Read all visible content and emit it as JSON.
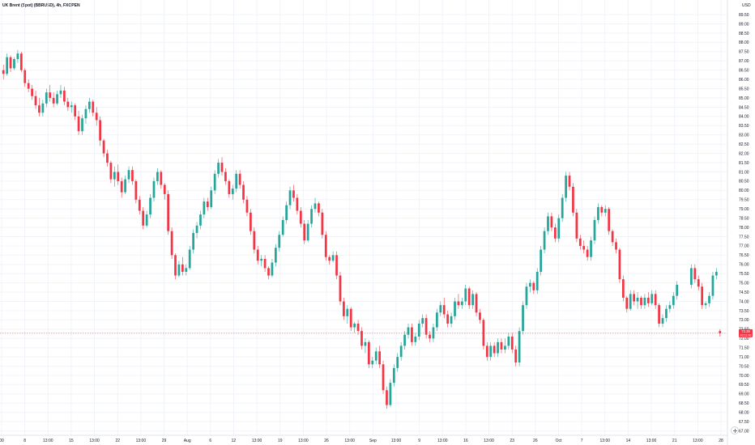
{
  "chart_data": {
    "type": "candlestick",
    "title": "UK Brent (Spot) (BBRUSD), 4h, FXOPEN",
    "currency": "USD",
    "ylim": [
      67.0,
      90.0
    ],
    "y_ticks": [
      "67.00",
      "67.50",
      "68.00",
      "68.50",
      "69.00",
      "69.50",
      "70.00",
      "70.50",
      "71.00",
      "71.50",
      "72.00",
      "72.50",
      "73.00",
      "73.50",
      "74.00",
      "74.50",
      "75.00",
      "75.50",
      "76.00",
      "76.50",
      "77.00",
      "77.50",
      "78.00",
      "78.50",
      "79.00",
      "79.50",
      "80.00",
      "80.50",
      "81.00",
      "81.50",
      "82.00",
      "82.50",
      "83.00",
      "83.50",
      "84.00",
      "84.50",
      "85.00",
      "85.50",
      "86.00",
      "86.50",
      "87.00",
      "87.50",
      "88.00",
      "88.50",
      "89.00",
      "89.50"
    ],
    "x_ticks": [
      "00",
      "8",
      "13:00",
      "15",
      "13:00",
      "22",
      "13:00",
      "29",
      "Aug",
      "6",
      "12",
      "13:00",
      "19",
      "13:00",
      "26",
      "13:00",
      "Sep",
      "13:00",
      "9",
      "13:00",
      "16",
      "13:00",
      "23",
      "26",
      "Oct",
      "7",
      "13:00",
      "14",
      "13:00",
      "21",
      "13:00",
      "28"
    ],
    "current_price": 72.28,
    "current_price_label": "72.28",
    "timer_label": "03:11:00",
    "candles": [
      [
        86.5,
        86.8,
        86.0,
        86.3
      ],
      [
        86.3,
        87.4,
        86.2,
        87.2
      ],
      [
        87.2,
        87.3,
        86.4,
        86.6
      ],
      [
        86.6,
        87.2,
        86.5,
        87.1
      ],
      [
        87.1,
        87.6,
        86.9,
        87.4
      ],
      [
        87.4,
        87.5,
        86.4,
        86.5
      ],
      [
        86.5,
        86.6,
        85.6,
        85.8
      ],
      [
        85.8,
        86.0,
        85.3,
        85.5
      ],
      [
        85.5,
        85.7,
        84.9,
        85.1
      ],
      [
        85.1,
        85.4,
        84.4,
        84.6
      ],
      [
        84.6,
        85.0,
        84.0,
        84.2
      ],
      [
        84.2,
        84.9,
        84.0,
        84.7
      ],
      [
        84.7,
        85.5,
        84.5,
        85.3
      ],
      [
        85.3,
        85.7,
        84.8,
        85.0
      ],
      [
        85.0,
        85.3,
        84.5,
        84.7
      ],
      [
        84.7,
        85.4,
        84.6,
        85.2
      ],
      [
        85.2,
        85.7,
        85.0,
        85.4
      ],
      [
        85.4,
        85.6,
        84.6,
        84.8
      ],
      [
        84.8,
        85.0,
        84.3,
        84.5
      ],
      [
        84.5,
        84.8,
        84.2,
        84.6
      ],
      [
        84.6,
        84.7,
        83.8,
        84.0
      ],
      [
        84.0,
        84.3,
        83.0,
        83.2
      ],
      [
        83.2,
        84.1,
        83.0,
        83.9
      ],
      [
        83.9,
        84.6,
        83.6,
        84.4
      ],
      [
        84.4,
        85.0,
        84.2,
        84.8
      ],
      [
        84.8,
        84.9,
        84.0,
        84.2
      ],
      [
        84.2,
        84.5,
        83.5,
        83.8
      ],
      [
        83.8,
        84.0,
        82.4,
        82.7
      ],
      [
        82.7,
        82.8,
        81.8,
        82.0
      ],
      [
        82.0,
        82.2,
        81.3,
        81.5
      ],
      [
        81.5,
        81.6,
        80.4,
        80.6
      ],
      [
        80.6,
        81.3,
        80.2,
        81.0
      ],
      [
        81.0,
        81.4,
        80.3,
        80.5
      ],
      [
        80.5,
        80.7,
        79.6,
        79.9
      ],
      [
        79.9,
        80.8,
        79.8,
        80.6
      ],
      [
        80.6,
        81.3,
        80.4,
        81.1
      ],
      [
        81.1,
        81.3,
        80.3,
        80.5
      ],
      [
        80.5,
        80.6,
        79.3,
        79.5
      ],
      [
        79.5,
        79.7,
        78.7,
        78.9
      ],
      [
        78.9,
        79.1,
        77.9,
        78.1
      ],
      [
        78.1,
        78.9,
        78.0,
        78.7
      ],
      [
        78.7,
        79.8,
        78.5,
        79.6
      ],
      [
        79.6,
        80.7,
        79.4,
        80.5
      ],
      [
        80.5,
        81.2,
        80.3,
        81.0
      ],
      [
        81.0,
        81.1,
        80.1,
        80.3
      ],
      [
        80.3,
        80.4,
        79.5,
        79.8
      ],
      [
        79.8,
        80.0,
        77.6,
        77.8
      ],
      [
        77.8,
        78.0,
        76.3,
        76.5
      ],
      [
        76.5,
        76.6,
        75.2,
        75.4
      ],
      [
        75.4,
        76.2,
        75.3,
        76.0
      ],
      [
        76.0,
        76.4,
        75.4,
        75.6
      ],
      [
        75.6,
        76.0,
        75.4,
        75.8
      ],
      [
        75.8,
        77.0,
        75.7,
        76.8
      ],
      [
        76.8,
        77.9,
        76.6,
        77.7
      ],
      [
        77.7,
        78.3,
        77.4,
        78.1
      ],
      [
        78.1,
        78.9,
        77.9,
        78.7
      ],
      [
        78.7,
        79.6,
        78.5,
        79.4
      ],
      [
        79.4,
        79.6,
        78.9,
        79.1
      ],
      [
        79.1,
        80.2,
        79.0,
        80.0
      ],
      [
        80.0,
        81.1,
        79.8,
        80.9
      ],
      [
        80.9,
        81.7,
        80.7,
        81.5
      ],
      [
        81.5,
        81.8,
        80.8,
        81.0
      ],
      [
        81.0,
        81.2,
        80.3,
        80.5
      ],
      [
        80.5,
        80.6,
        79.6,
        79.8
      ],
      [
        79.8,
        80.3,
        79.5,
        80.1
      ],
      [
        80.1,
        81.1,
        79.9,
        80.9
      ],
      [
        80.9,
        81.1,
        80.1,
        80.3
      ],
      [
        80.3,
        80.5,
        79.3,
        79.5
      ],
      [
        79.5,
        79.7,
        78.6,
        78.8
      ],
      [
        78.8,
        79.0,
        77.6,
        77.8
      ],
      [
        77.8,
        78.0,
        76.6,
        76.8
      ],
      [
        76.8,
        77.0,
        76.0,
        76.2
      ],
      [
        76.2,
        76.5,
        75.9,
        76.3
      ],
      [
        76.3,
        76.5,
        75.6,
        75.8
      ],
      [
        75.8,
        75.9,
        75.2,
        75.4
      ],
      [
        75.4,
        76.3,
        75.3,
        76.1
      ],
      [
        76.1,
        77.1,
        75.9,
        76.9
      ],
      [
        76.9,
        77.8,
        76.7,
        77.6
      ],
      [
        77.6,
        78.6,
        77.5,
        78.4
      ],
      [
        78.4,
        79.4,
        78.2,
        79.2
      ],
      [
        79.2,
        80.2,
        79.0,
        80.0
      ],
      [
        80.0,
        80.3,
        79.4,
        79.6
      ],
      [
        79.6,
        79.8,
        78.7,
        78.9
      ],
      [
        78.9,
        79.1,
        78.0,
        78.2
      ],
      [
        78.2,
        78.4,
        77.1,
        77.3
      ],
      [
        77.3,
        78.4,
        77.2,
        78.2
      ],
      [
        78.2,
        79.2,
        78.0,
        79.0
      ],
      [
        79.0,
        79.6,
        78.8,
        79.3
      ],
      [
        79.3,
        79.4,
        78.6,
        78.8
      ],
      [
        78.8,
        79.0,
        77.4,
        77.6
      ],
      [
        77.6,
        77.8,
        76.2,
        76.4
      ],
      [
        76.4,
        76.5,
        76.0,
        76.2
      ],
      [
        76.2,
        76.7,
        76.1,
        76.5
      ],
      [
        76.5,
        76.7,
        75.2,
        75.4
      ],
      [
        75.4,
        75.6,
        73.8,
        74.0
      ],
      [
        74.0,
        74.2,
        73.0,
        73.2
      ],
      [
        73.2,
        73.8,
        72.8,
        73.6
      ],
      [
        73.6,
        73.7,
        72.4,
        72.6
      ],
      [
        72.6,
        72.9,
        72.3,
        72.8
      ],
      [
        72.8,
        73.0,
        72.2,
        72.4
      ],
      [
        72.4,
        72.6,
        71.4,
        71.6
      ],
      [
        71.6,
        72.0,
        71.2,
        71.8
      ],
      [
        71.8,
        71.9,
        70.4,
        70.6
      ],
      [
        70.6,
        71.0,
        70.4,
        70.8
      ],
      [
        70.8,
        71.5,
        70.6,
        71.3
      ],
      [
        71.3,
        71.6,
        70.4,
        70.6
      ],
      [
        70.6,
        70.8,
        69.0,
        69.2
      ],
      [
        69.2,
        69.4,
        68.2,
        68.4
      ],
      [
        68.4,
        69.8,
        68.3,
        69.6
      ],
      [
        69.6,
        70.6,
        69.4,
        70.4
      ],
      [
        70.4,
        71.2,
        70.2,
        71.0
      ],
      [
        71.0,
        71.8,
        70.8,
        71.6
      ],
      [
        71.6,
        72.4,
        71.4,
        72.2
      ],
      [
        72.2,
        72.8,
        72.0,
        72.6
      ],
      [
        72.6,
        72.8,
        71.6,
        71.8
      ],
      [
        71.8,
        72.3,
        71.6,
        72.1
      ],
      [
        72.1,
        73.0,
        71.9,
        72.8
      ],
      [
        72.8,
        73.3,
        72.6,
        73.1
      ],
      [
        73.1,
        73.3,
        72.0,
        72.2
      ],
      [
        72.2,
        72.4,
        71.8,
        72.0
      ],
      [
        72.0,
        72.8,
        71.8,
        72.6
      ],
      [
        72.6,
        73.6,
        72.4,
        73.4
      ],
      [
        73.4,
        74.0,
        73.2,
        73.8
      ],
      [
        73.8,
        74.2,
        73.1,
        73.3
      ],
      [
        73.3,
        73.5,
        72.6,
        72.8
      ],
      [
        72.8,
        73.4,
        72.6,
        73.2
      ],
      [
        73.2,
        74.2,
        73.0,
        74.0
      ],
      [
        74.0,
        74.4,
        73.6,
        73.8
      ],
      [
        73.8,
        74.2,
        73.6,
        74.0
      ],
      [
        74.0,
        74.9,
        73.8,
        74.7
      ],
      [
        74.7,
        74.8,
        73.6,
        73.8
      ],
      [
        73.8,
        74.6,
        73.6,
        74.4
      ],
      [
        74.4,
        74.5,
        73.2,
        73.4
      ],
      [
        73.4,
        73.6,
        72.8,
        73.0
      ],
      [
        73.0,
        73.1,
        71.4,
        71.6
      ],
      [
        71.6,
        71.8,
        70.8,
        71.0
      ],
      [
        71.0,
        71.8,
        70.8,
        71.6
      ],
      [
        71.6,
        71.8,
        71.0,
        71.2
      ],
      [
        71.2,
        72.0,
        71.0,
        71.8
      ],
      [
        71.8,
        72.0,
        71.2,
        71.4
      ],
      [
        71.4,
        72.0,
        71.2,
        71.6
      ],
      [
        71.6,
        72.3,
        71.4,
        72.1
      ],
      [
        72.1,
        72.3,
        71.2,
        71.4
      ],
      [
        71.4,
        71.6,
        70.5,
        70.7
      ],
      [
        70.7,
        72.6,
        70.5,
        72.4
      ],
      [
        72.4,
        74.0,
        72.2,
        73.8
      ],
      [
        73.8,
        75.0,
        73.6,
        74.8
      ],
      [
        74.8,
        75.2,
        74.5,
        75.0
      ],
      [
        75.0,
        75.1,
        74.4,
        74.6
      ],
      [
        74.6,
        75.8,
        74.4,
        75.6
      ],
      [
        75.6,
        77.0,
        75.4,
        76.8
      ],
      [
        76.8,
        78.0,
        76.6,
        77.8
      ],
      [
        77.8,
        78.8,
        77.6,
        78.6
      ],
      [
        78.6,
        78.8,
        77.8,
        78.0
      ],
      [
        78.0,
        78.2,
        77.2,
        77.4
      ],
      [
        77.4,
        78.7,
        77.2,
        78.5
      ],
      [
        78.5,
        79.8,
        78.3,
        79.6
      ],
      [
        79.6,
        81.0,
        79.4,
        80.8
      ],
      [
        80.8,
        81.0,
        80.0,
        80.2
      ],
      [
        80.2,
        80.4,
        78.6,
        78.8
      ],
      [
        78.8,
        79.0,
        77.2,
        77.4
      ],
      [
        77.4,
        77.6,
        76.8,
        77.0
      ],
      [
        77.0,
        77.3,
        76.6,
        76.8
      ],
      [
        76.8,
        77.0,
        76.2,
        76.4
      ],
      [
        76.4,
        77.5,
        76.2,
        77.3
      ],
      [
        77.3,
        78.6,
        77.1,
        78.4
      ],
      [
        78.4,
        79.3,
        78.2,
        79.1
      ],
      [
        79.1,
        79.2,
        78.6,
        78.8
      ],
      [
        78.8,
        79.2,
        78.6,
        79.0
      ],
      [
        79.0,
        79.1,
        77.6,
        77.8
      ],
      [
        77.8,
        77.9,
        77.0,
        77.2
      ],
      [
        77.2,
        77.4,
        76.6,
        76.8
      ],
      [
        76.8,
        76.9,
        75.0,
        75.2
      ],
      [
        75.2,
        75.4,
        74.0,
        74.2
      ],
      [
        74.2,
        74.3,
        73.4,
        73.6
      ],
      [
        73.6,
        74.6,
        73.5,
        74.4
      ],
      [
        74.4,
        74.6,
        73.8,
        74.0
      ],
      [
        74.0,
        74.5,
        73.6,
        74.2
      ],
      [
        74.2,
        74.3,
        73.6,
        73.8
      ],
      [
        73.8,
        74.4,
        73.6,
        74.2
      ],
      [
        74.2,
        74.5,
        73.7,
        73.9
      ],
      [
        73.9,
        74.6,
        73.8,
        74.4
      ],
      [
        74.4,
        74.6,
        73.6,
        73.8
      ],
      [
        73.8,
        73.9,
        72.6,
        72.8
      ],
      [
        72.8,
        73.3,
        72.6,
        73.1
      ],
      [
        73.1,
        73.8,
        72.9,
        73.6
      ],
      [
        73.6,
        74.0,
        73.4,
        73.8
      ],
      [
        73.8,
        74.5,
        73.6,
        74.3
      ],
      [
        74.3,
        75.1,
        74.1,
        74.9
      ],
      [
        74.9,
        76.0,
        74.7,
        75.8
      ],
      [
        75.8,
        76.0,
        75.0,
        75.2
      ],
      [
        75.2,
        75.4,
        74.6,
        74.8
      ],
      [
        74.8,
        75.0,
        73.6,
        73.8
      ],
      [
        73.8,
        74.0,
        73.6,
        73.9
      ],
      [
        73.9,
        74.5,
        73.7,
        74.3
      ],
      [
        74.3,
        75.6,
        74.1,
        75.4
      ],
      [
        75.4,
        75.8,
        75.2,
        75.6
      ],
      [
        72.4,
        72.5,
        72.1,
        72.28
      ]
    ],
    "candle_gaps": [
      [
        189,
        3
      ]
    ]
  },
  "colors": {
    "up": "#26a69a",
    "down": "#f23645",
    "grid": "#f0f3fa",
    "axis_text": "#131722",
    "price_line": "#f23645",
    "background": "#ffffff"
  }
}
